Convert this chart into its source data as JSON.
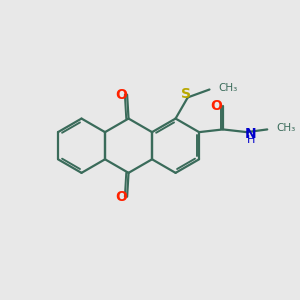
{
  "bg_color": "#e8e8e8",
  "bond_color": "#3a6b5a",
  "carbonyl_o_color": "#ff2200",
  "sulfur_color": "#b8a800",
  "nitrogen_color": "#0000cc",
  "line_width": 1.6,
  "figsize": [
    3.0,
    3.0
  ],
  "dpi": 100,
  "xlim": [
    0,
    10
  ],
  "ylim": [
    0,
    10
  ]
}
